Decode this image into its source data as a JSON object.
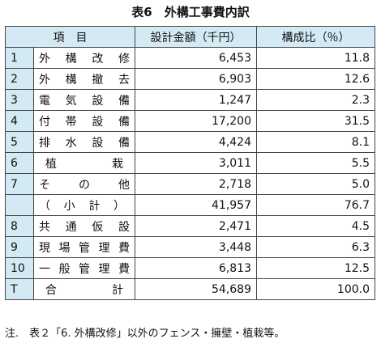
{
  "title": "表6　外構工事費内訳",
  "table": {
    "header": {
      "item": "項　目",
      "amount": "設計金額（千円）",
      "ratio": "構成比（％）"
    },
    "rows": [
      {
        "no": "1",
        "item": "外構改修",
        "amount": "6,453",
        "ratio": "11.8"
      },
      {
        "no": "2",
        "item": "外構撤去",
        "amount": "6,903",
        "ratio": "12.6"
      },
      {
        "no": "3",
        "item": "電気設備",
        "amount": "1,247",
        "ratio": "2.3"
      },
      {
        "no": "4",
        "item": "付帯設備",
        "amount": "17,200",
        "ratio": "31.5"
      },
      {
        "no": "5",
        "item": "排水設備",
        "amount": "4,424",
        "ratio": "8.1"
      },
      {
        "no": "6",
        "item": "植栽",
        "amount": "3,011",
        "ratio": "5.5"
      },
      {
        "no": "7",
        "item": "その他",
        "amount": "2,718",
        "ratio": "5.0"
      },
      {
        "item": "（小計）",
        "amount": "41,957",
        "ratio": "76.7"
      },
      {
        "no": "8",
        "item": "共通仮設",
        "amount": "2,471",
        "ratio": "4.5"
      },
      {
        "no": "9",
        "item": "現場管理費",
        "amount": "3,448",
        "ratio": "6.3"
      },
      {
        "no": "10",
        "item": "一般管理費",
        "amount": "6,813",
        "ratio": "12.5"
      },
      {
        "no": "T",
        "item": "合計",
        "amount": "54,689",
        "ratio": "100.0"
      }
    ]
  },
  "note": "注.　表２「6. 外構改修」以外のフェンス・擁壁・植栽等。"
}
